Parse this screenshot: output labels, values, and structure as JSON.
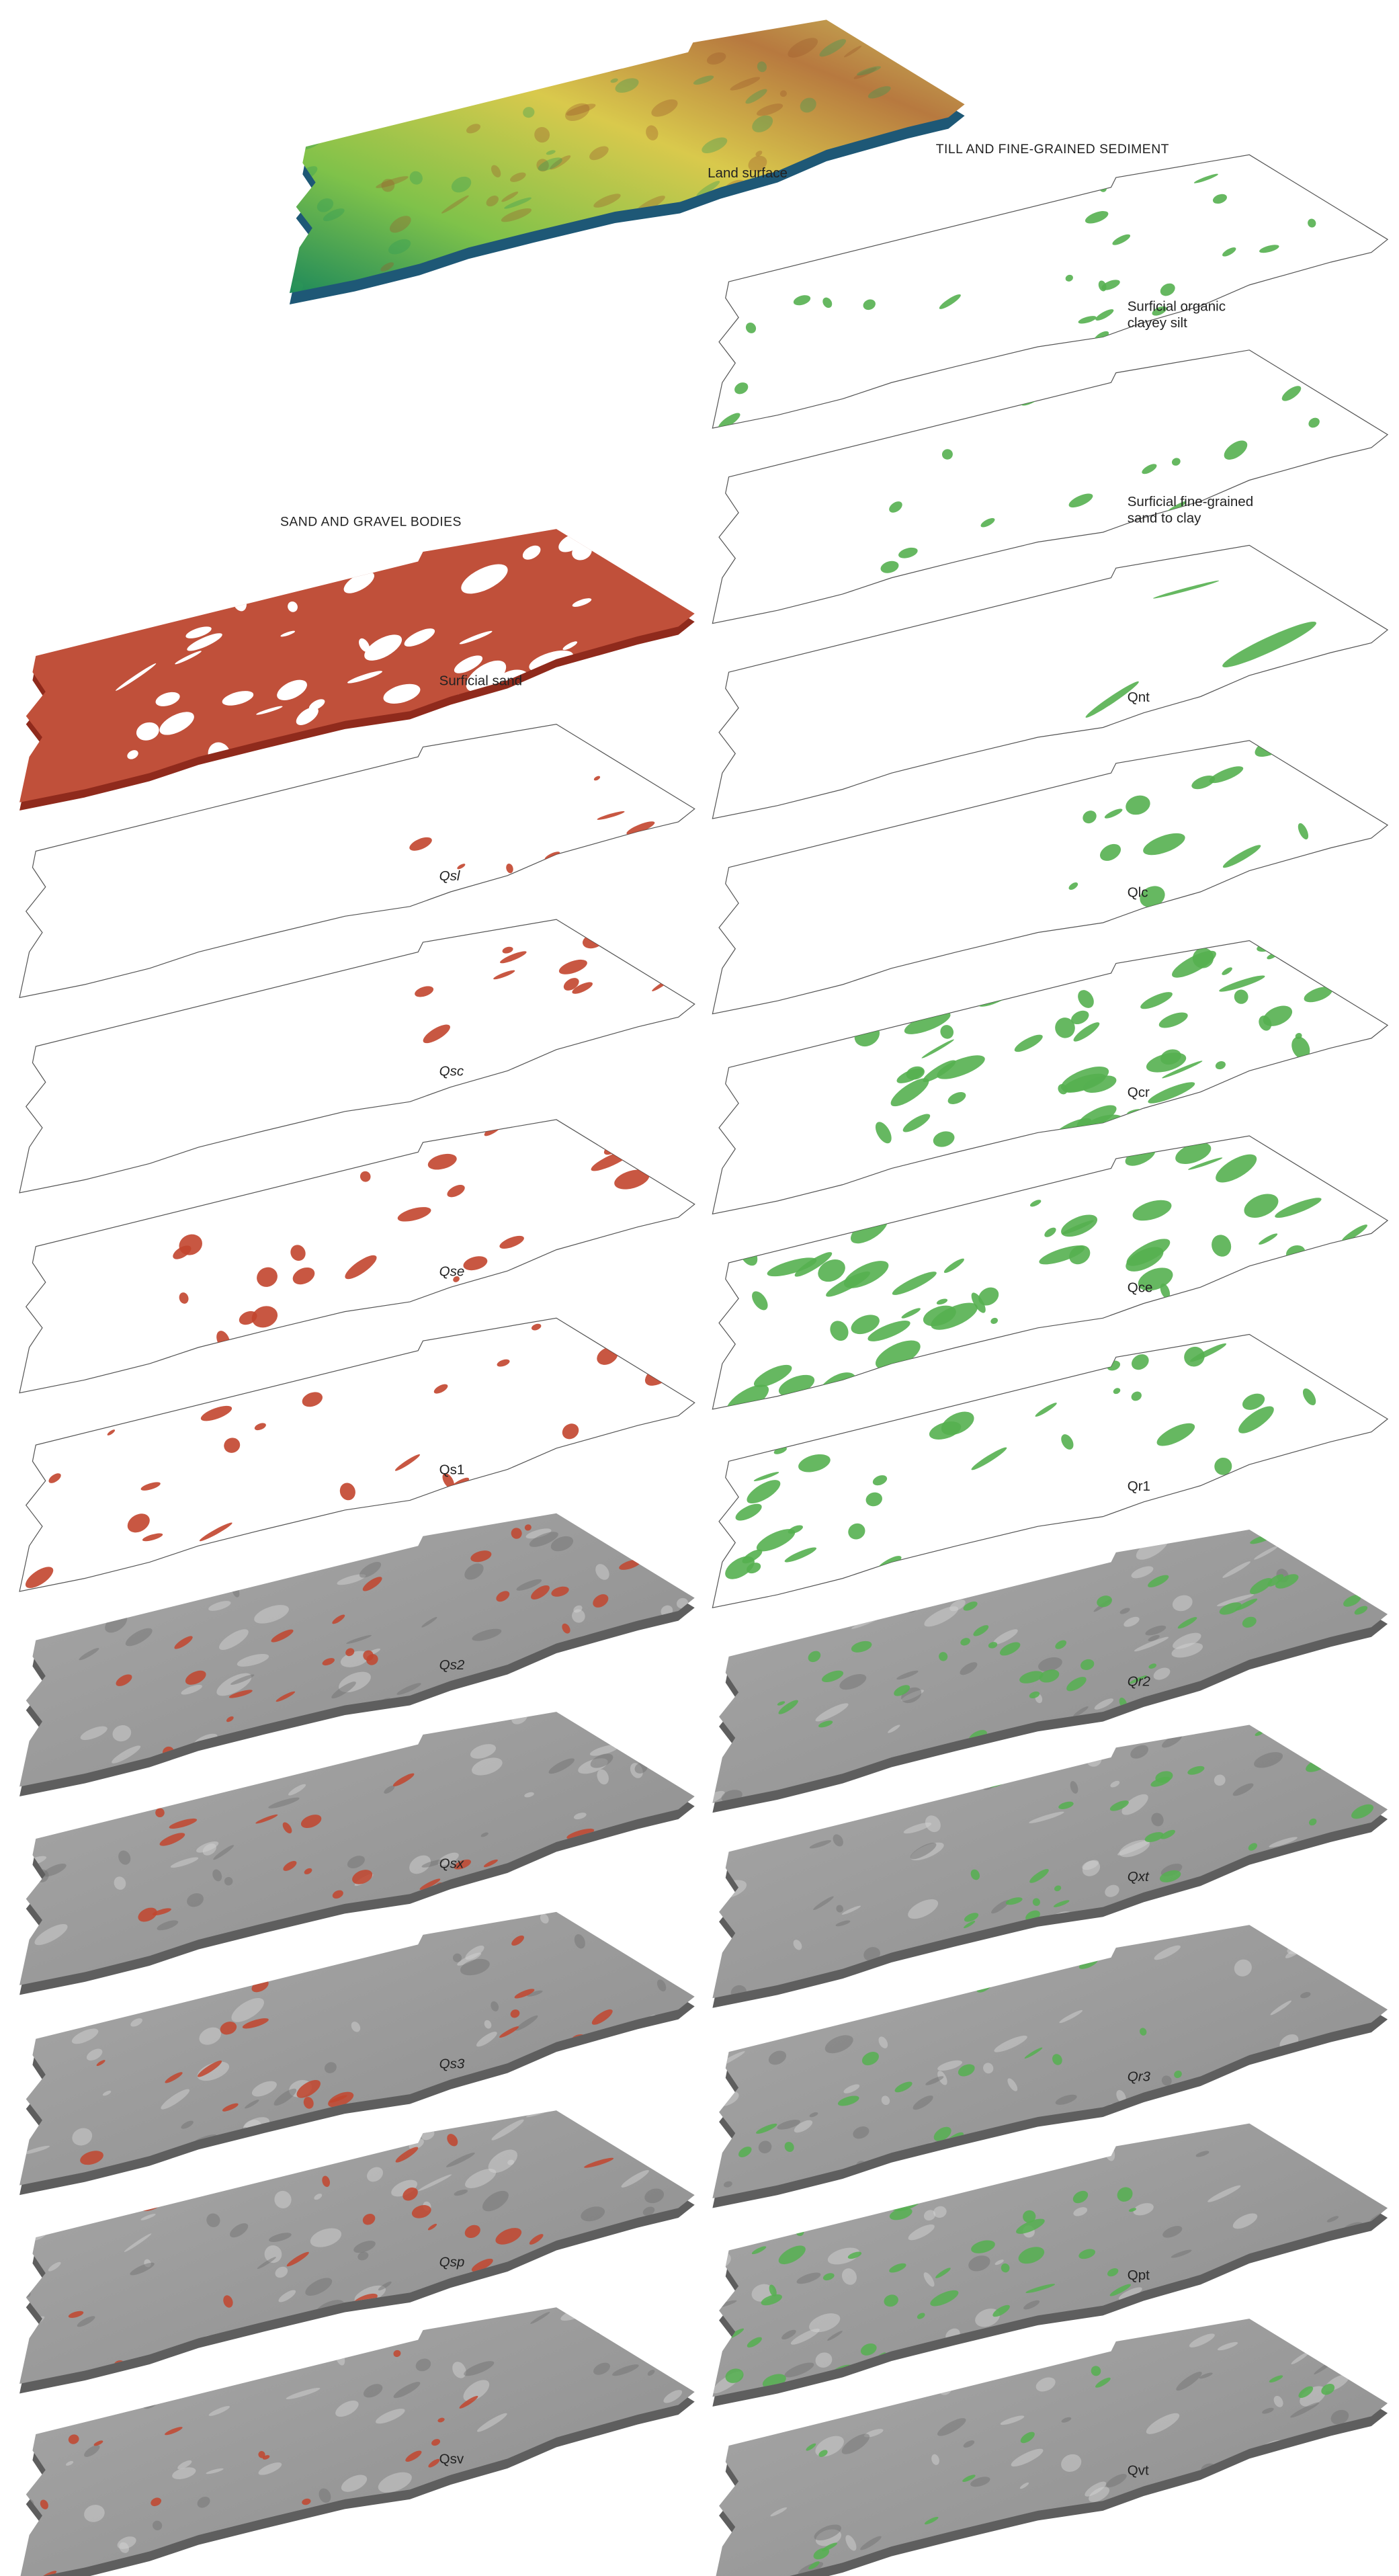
{
  "headings": {
    "till": "TILL AND FINE-GRAINED SEDIMENT",
    "sand_gravel": "SAND AND GRAVEL BODIES"
  },
  "land_surface": {
    "lines": [
      "Land surface"
    ]
  },
  "sand_gravel_panels": [
    {
      "lines": [
        "Surficial sand"
      ]
    },
    {
      "lines": [
        "Qsl"
      ]
    },
    {
      "lines": [
        "Qsc"
      ]
    },
    {
      "lines": [
        "Qse"
      ]
    },
    {
      "lines": [
        "Qs1"
      ]
    },
    {
      "lines": [
        "Qs2"
      ]
    },
    {
      "lines": [
        "Qsx"
      ]
    },
    {
      "lines": [
        "Qs3"
      ]
    },
    {
      "lines": [
        "Qsp"
      ]
    },
    {
      "lines": [
        "Qsv"
      ]
    }
  ],
  "till_panels": [
    {
      "lines": [
        "Surficial organic",
        "clayey silt"
      ]
    },
    {
      "lines": [
        "Surficial fine-grained",
        "sand to clay"
      ]
    },
    {
      "lines": [
        "Qnt"
      ]
    },
    {
      "lines": [
        "Qlc"
      ]
    },
    {
      "lines": [
        "Qcr"
      ]
    },
    {
      "lines": [
        "Qce"
      ]
    },
    {
      "lines": [
        "Qr1"
      ]
    },
    {
      "lines": [
        "Qr2"
      ]
    },
    {
      "lines": [
        "Qxt"
      ]
    },
    {
      "lines": [
        "Qr3"
      ]
    },
    {
      "lines": [
        "Qpt"
      ]
    },
    {
      "lines": [
        "Qvt"
      ]
    }
  ]
}
